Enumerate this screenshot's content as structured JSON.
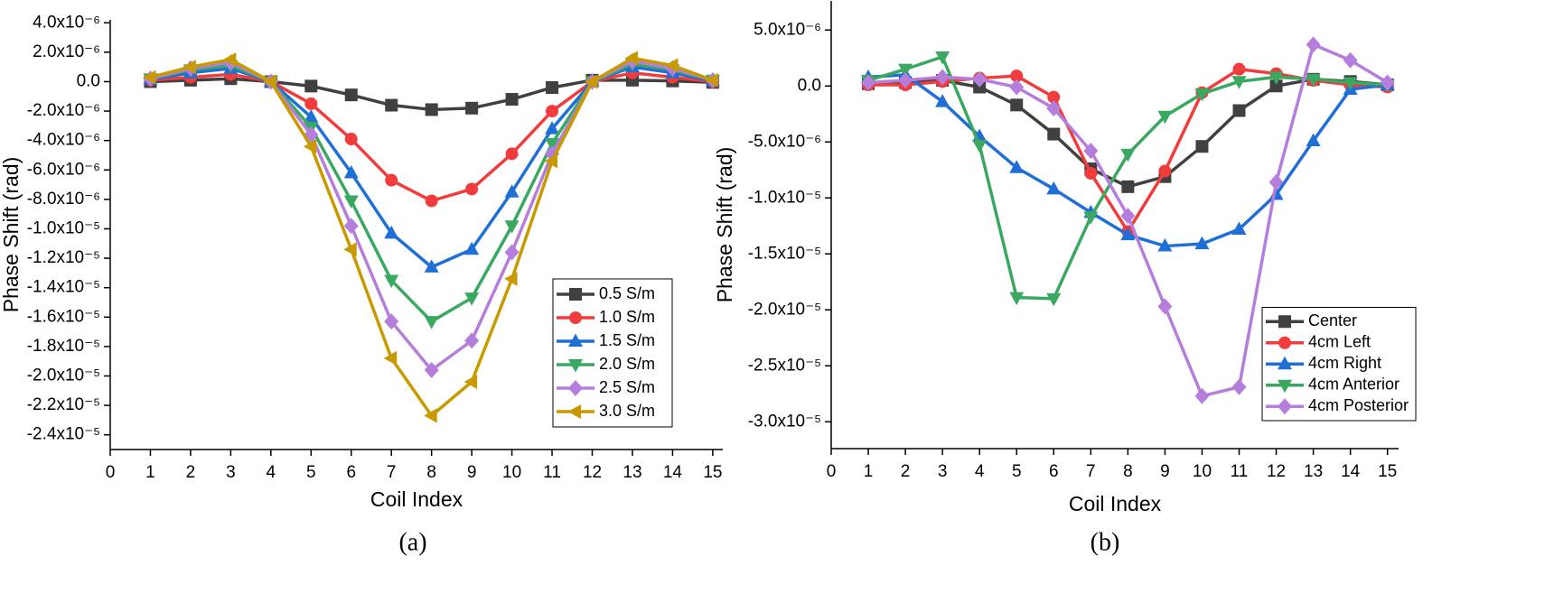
{
  "chart_data": [
    {
      "type": "line",
      "caption": "(a)",
      "xlabel": "Coil Index",
      "ylabel": "Phase Shift (rad)",
      "x": [
        1,
        2,
        3,
        4,
        5,
        6,
        7,
        8,
        9,
        10,
        11,
        12,
        13,
        14,
        15
      ],
      "xlim": [
        0,
        15.25
      ],
      "xticks": [
        0,
        1,
        2,
        3,
        4,
        5,
        6,
        7,
        8,
        9,
        10,
        11,
        12,
        13,
        14,
        15
      ],
      "ylim": [
        -2.5e-05,
        4.2e-06
      ],
      "yticks": [
        {
          "value": 4e-06,
          "label": "4.0x10⁻⁶"
        },
        {
          "value": 2e-06,
          "label": "2.0x10⁻⁶"
        },
        {
          "value": 0,
          "label": "0.0"
        },
        {
          "value": -2e-06,
          "label": "-2.0x10⁻⁶"
        },
        {
          "value": -4e-06,
          "label": "-4.0x10⁻⁶"
        },
        {
          "value": -6e-06,
          "label": "-6.0x10⁻⁶"
        },
        {
          "value": -8e-06,
          "label": "-8.0x10⁻⁶"
        },
        {
          "value": -1e-05,
          "label": "-1.0x10⁻⁵"
        },
        {
          "value": -1.2e-05,
          "label": "-1.2x10⁻⁵"
        },
        {
          "value": -1.4e-05,
          "label": "-1.4x10⁻⁵"
        },
        {
          "value": -1.6e-05,
          "label": "-1.6x10⁻⁵"
        },
        {
          "value": -1.8e-05,
          "label": "-1.8x10⁻⁵"
        },
        {
          "value": -2e-05,
          "label": "-2.0x10⁻⁵"
        },
        {
          "value": -2.2e-05,
          "label": "-2.2x10⁻⁵"
        },
        {
          "value": -2.4e-05,
          "label": "-2.4x10⁻⁵"
        }
      ],
      "legend": "lower right",
      "series": [
        {
          "name": "0.5 S/m",
          "color": "#404040",
          "marker": "square",
          "values": [
            0,
            1e-07,
            2e-07,
            0,
            -3e-07,
            -9e-07,
            -1.6e-06,
            -1.9e-06,
            -1.8e-06,
            -1.2e-06,
            -4e-07,
            1e-07,
            1e-07,
            5e-08,
            -5e-08
          ]
        },
        {
          "name": "1.0 S/m",
          "color": "#f03c3c",
          "marker": "circle",
          "values": [
            1e-07,
            3e-07,
            5e-07,
            0,
            -1.5e-06,
            -3.9e-06,
            -6.7e-06,
            -8.1e-06,
            -7.3e-06,
            -4.9e-06,
            -2e-06,
            0,
            6e-07,
            3e-07,
            0
          ]
        },
        {
          "name": "1.5 S/m",
          "color": "#1f6fd6",
          "marker": "triangle-up",
          "values": [
            1.5e-07,
            6e-07,
            9e-07,
            0,
            -2.4e-06,
            -6.2e-06,
            -1.03e-05,
            -1.26e-05,
            -1.14e-05,
            -7.5e-06,
            -3.2e-06,
            0,
            1e-06,
            6e-07,
            5e-08
          ]
        },
        {
          "name": "2.0 S/m",
          "color": "#3aa860",
          "marker": "triangle-down",
          "values": [
            2e-07,
            8e-07,
            1.1e-06,
            0,
            -3.1e-06,
            -8.1e-06,
            -1.35e-05,
            -1.63e-05,
            -1.47e-05,
            -9.8e-06,
            -4.2e-06,
            0,
            1.2e-06,
            8e-07,
            1e-07
          ]
        },
        {
          "name": "2.5 S/m",
          "color": "#b57edc",
          "marker": "diamond",
          "values": [
            2e-07,
            9e-07,
            1.3e-06,
            0,
            -3.6e-06,
            -9.8e-06,
            -1.63e-05,
            -1.96e-05,
            -1.76e-05,
            -1.16e-05,
            -4.9e-06,
            0,
            1.4e-06,
            9e-07,
            1e-07
          ]
        },
        {
          "name": "3.0 S/m",
          "color": "#c89a00",
          "marker": "triangle-left",
          "values": [
            3e-07,
            1e-06,
            1.5e-06,
            0,
            -4.4e-06,
            -1.14e-05,
            -1.88e-05,
            -2.27e-05,
            -2.04e-05,
            -1.34e-05,
            -5.4e-06,
            0,
            1.6e-06,
            1.1e-06,
            1e-07
          ]
        }
      ]
    },
    {
      "type": "line",
      "caption": "(b)",
      "xlabel": "Coil Index",
      "ylabel": "Phase Shift (rad)",
      "x": [
        1,
        2,
        3,
        4,
        5,
        6,
        7,
        8,
        9,
        10,
        11,
        12,
        13,
        14,
        15
      ],
      "xlim": [
        0,
        15.3
      ],
      "xticks": [
        0,
        1,
        2,
        3,
        4,
        5,
        6,
        7,
        8,
        9,
        10,
        11,
        12,
        13,
        14,
        15
      ],
      "ylim": [
        -3.24e-05,
        7.6e-06
      ],
      "yticks": [
        {
          "value": 5e-06,
          "label": "5.0x10⁻⁶"
        },
        {
          "value": 0,
          "label": "0.0"
        },
        {
          "value": -5e-06,
          "label": "-5.0x10⁻⁶"
        },
        {
          "value": -1e-05,
          "label": "-1.0x10⁻⁵"
        },
        {
          "value": -1.5e-05,
          "label": "-1.5x10⁻⁵"
        },
        {
          "value": -2e-05,
          "label": "-2.0x10⁻⁵"
        },
        {
          "value": -2.5e-05,
          "label": "-2.5x10⁻⁵"
        },
        {
          "value": -3e-05,
          "label": "-3.0x10⁻⁵"
        }
      ],
      "legend": "lower right",
      "series": [
        {
          "name": "Center",
          "color": "#404040",
          "marker": "square",
          "values": [
            2e-07,
            3e-07,
            5e-07,
            -1e-07,
            -1.7e-06,
            -4.3e-06,
            -7.4e-06,
            -9e-06,
            -8.1e-06,
            -5.4e-06,
            -2.2e-06,
            0,
            6e-07,
            4e-07,
            1e-07
          ]
        },
        {
          "name": "4cm Left",
          "color": "#f03c3c",
          "marker": "circle",
          "values": [
            1e-07,
            1e-07,
            4e-07,
            7e-07,
            9e-07,
            -1e-06,
            -7.8e-06,
            -1.3e-05,
            -7.6e-06,
            -6e-07,
            1.5e-06,
            1.1e-06,
            5e-07,
            1e-07,
            -1e-07
          ]
        },
        {
          "name": "4cm Right",
          "color": "#1f6fd6",
          "marker": "triangle-up",
          "values": [
            8e-07,
            1e-06,
            -1.4e-06,
            -4.5e-06,
            -7.3e-06,
            -9.2e-06,
            -1.13e-05,
            -1.33e-05,
            -1.43e-05,
            -1.41e-05,
            -1.28e-05,
            -9.7e-06,
            -4.9e-06,
            -3e-07,
            1e-07
          ]
        },
        {
          "name": "4cm Anterior",
          "color": "#3aa860",
          "marker": "triangle-down",
          "values": [
            5e-07,
            1.5e-06,
            2.6e-06,
            -5.3e-06,
            -1.89e-05,
            -1.9e-05,
            -1.17e-05,
            -6.1e-06,
            -2.7e-06,
            -7e-07,
            4e-07,
            8e-07,
            6e-07,
            3e-07,
            1e-07
          ]
        },
        {
          "name": "4cm Posterior",
          "color": "#b57edc",
          "marker": "diamond",
          "values": [
            3e-07,
            5e-07,
            8e-07,
            6e-07,
            -1e-07,
            -2e-06,
            -5.8e-06,
            -1.16e-05,
            -1.97e-05,
            -2.77e-05,
            -2.69e-05,
            -8.6e-06,
            3.7e-06,
            2.3e-06,
            3e-07
          ]
        }
      ]
    }
  ]
}
